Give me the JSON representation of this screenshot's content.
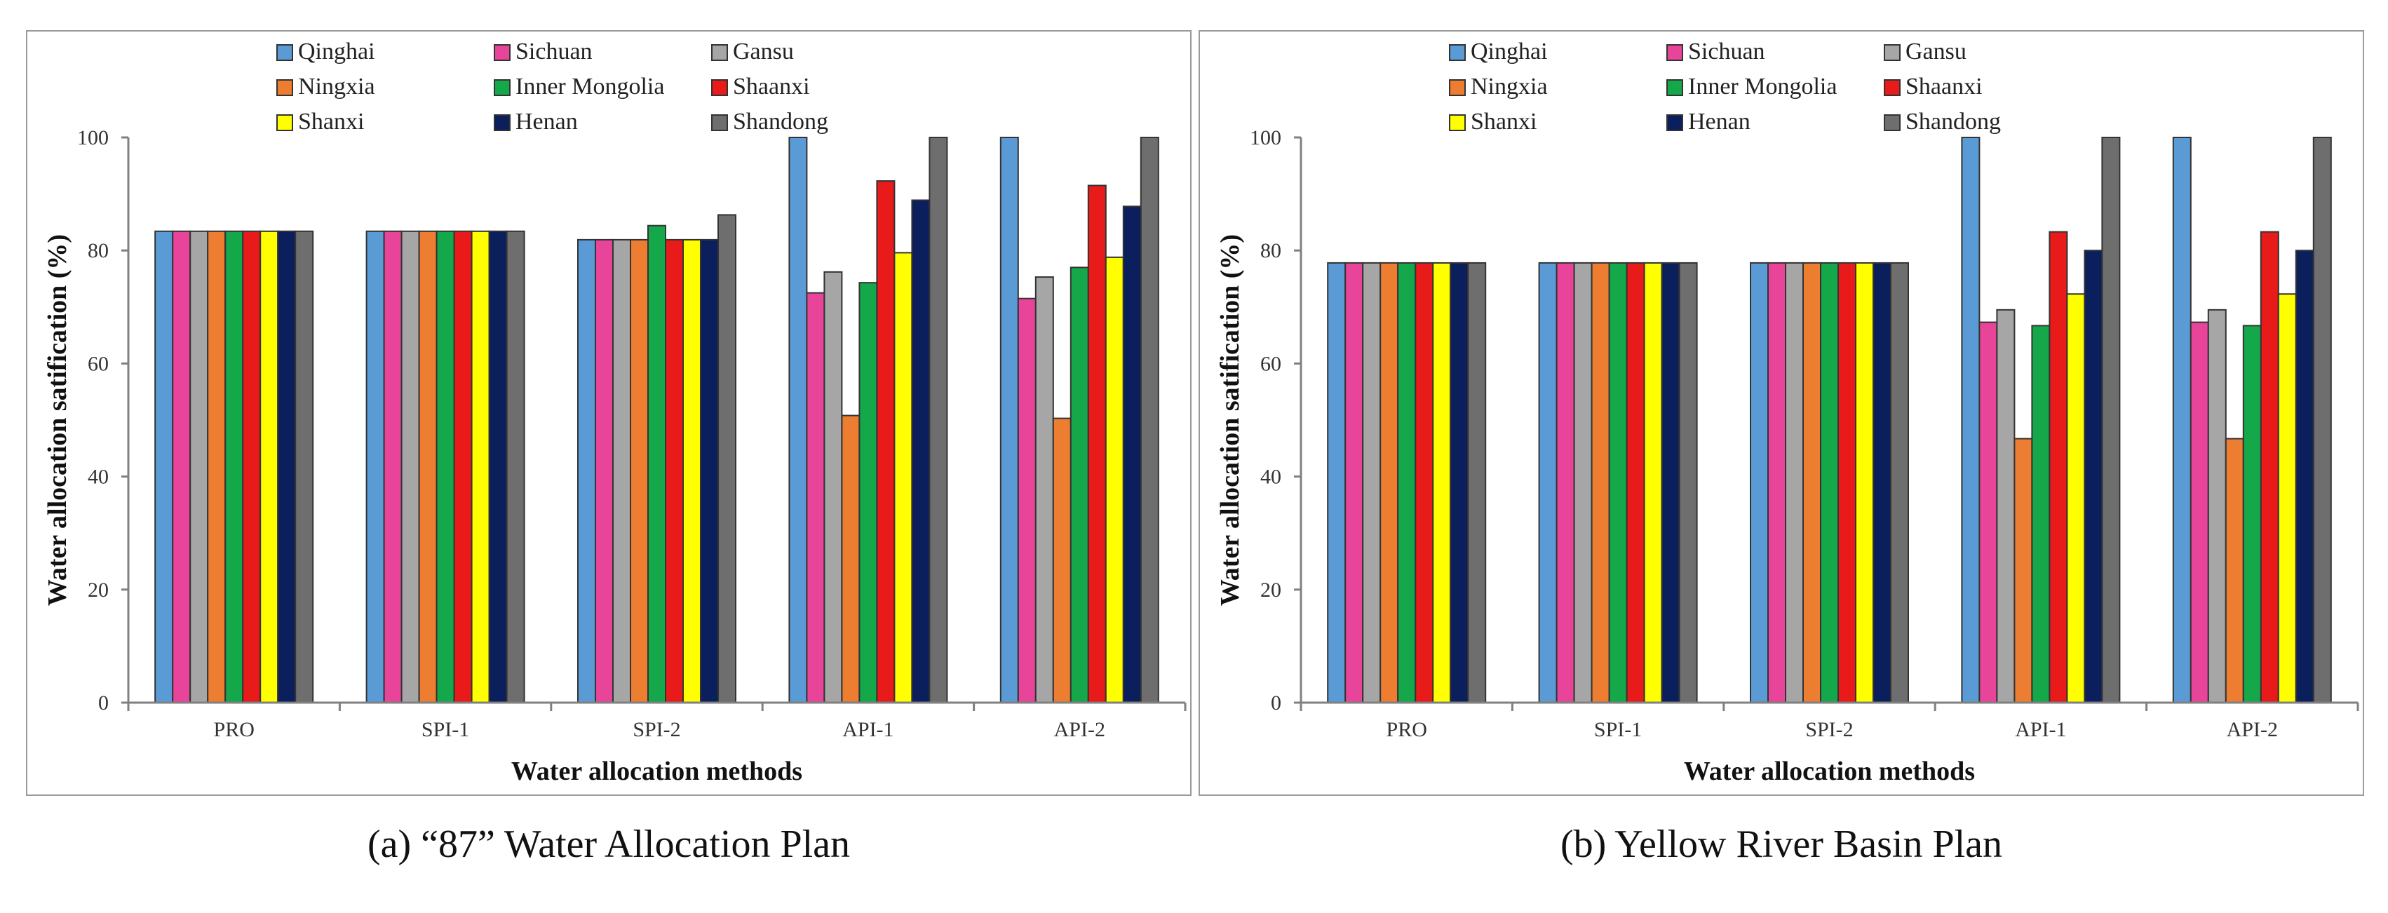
{
  "chart_data": [
    {
      "type": "bar",
      "title": "",
      "caption": "(a)  “87” Water Allocation Plan",
      "xlabel": "Water allocation methods",
      "ylabel": "Water allocation satification (%)",
      "ylim": [
        0,
        100
      ],
      "yticks": [
        0,
        20,
        40,
        60,
        80,
        100
      ],
      "grid": false,
      "legend_position": "top",
      "categories": [
        "PRO",
        "SPI-1",
        "SPI-2",
        "API-1",
        "API-2"
      ],
      "series": [
        {
          "name": "Qinghai",
          "color": "#5b9bd5",
          "values": [
            83.4,
            83.4,
            81.9,
            100,
            100
          ]
        },
        {
          "name": "Sichuan",
          "color": "#e8459a",
          "values": [
            83.4,
            83.4,
            81.9,
            72.5,
            71.5
          ]
        },
        {
          "name": "Gansu",
          "color": "#a6a6a6",
          "values": [
            83.4,
            83.4,
            81.9,
            76.2,
            75.3
          ]
        },
        {
          "name": "Ningxia",
          "color": "#ed7d31",
          "values": [
            83.4,
            83.4,
            81.9,
            50.8,
            50.3
          ]
        },
        {
          "name": "Inner Mongolia",
          "color": "#14a84b",
          "values": [
            83.4,
            83.4,
            84.4,
            74.3,
            77.0
          ]
        },
        {
          "name": "Shaanxi",
          "color": "#e81a1a",
          "values": [
            83.4,
            83.4,
            81.9,
            92.3,
            91.5
          ]
        },
        {
          "name": "Shanxi",
          "color": "#ffff00",
          "values": [
            83.4,
            83.4,
            81.9,
            79.6,
            78.8
          ]
        },
        {
          "name": "Henan",
          "color": "#0b1f5c",
          "values": [
            83.4,
            83.4,
            81.9,
            88.9,
            87.8
          ]
        },
        {
          "name": "Shandong",
          "color": "#6e6e6e",
          "values": [
            83.4,
            83.4,
            86.3,
            100,
            100
          ]
        }
      ]
    },
    {
      "type": "bar",
      "title": "",
      "caption": "(b) Yellow River Basin Plan",
      "xlabel": "Water allocation methods",
      "ylabel": "Water allocation satification (%)",
      "ylim": [
        0,
        100
      ],
      "yticks": [
        0,
        20,
        40,
        60,
        80,
        100
      ],
      "grid": false,
      "legend_position": "top",
      "categories": [
        "PRO",
        "SPI-1",
        "SPI-2",
        "API-1",
        "API-2"
      ],
      "series": [
        {
          "name": "Qinghai",
          "color": "#5b9bd5",
          "values": [
            77.8,
            77.8,
            77.8,
            100,
            100
          ]
        },
        {
          "name": "Sichuan",
          "color": "#e8459a",
          "values": [
            77.8,
            77.8,
            77.8,
            67.3,
            67.3
          ]
        },
        {
          "name": "Gansu",
          "color": "#a6a6a6",
          "values": [
            77.8,
            77.8,
            77.8,
            69.5,
            69.5
          ]
        },
        {
          "name": "Ningxia",
          "color": "#ed7d31",
          "values": [
            77.8,
            77.8,
            77.8,
            46.7,
            46.7
          ]
        },
        {
          "name": "Inner Mongolia",
          "color": "#14a84b",
          "values": [
            77.8,
            77.8,
            77.8,
            66.7,
            66.7
          ]
        },
        {
          "name": "Shaanxi",
          "color": "#e81a1a",
          "values": [
            77.8,
            77.8,
            77.8,
            83.3,
            83.3
          ]
        },
        {
          "name": "Shanxi",
          "color": "#ffff00",
          "values": [
            77.8,
            77.8,
            77.8,
            72.3,
            72.3
          ]
        },
        {
          "name": "Henan",
          "color": "#0b1f5c",
          "values": [
            77.8,
            77.8,
            77.8,
            80.0,
            80.0
          ]
        },
        {
          "name": "Shandong",
          "color": "#6e6e6e",
          "values": [
            77.8,
            77.8,
            77.8,
            100,
            100
          ]
        }
      ]
    }
  ]
}
